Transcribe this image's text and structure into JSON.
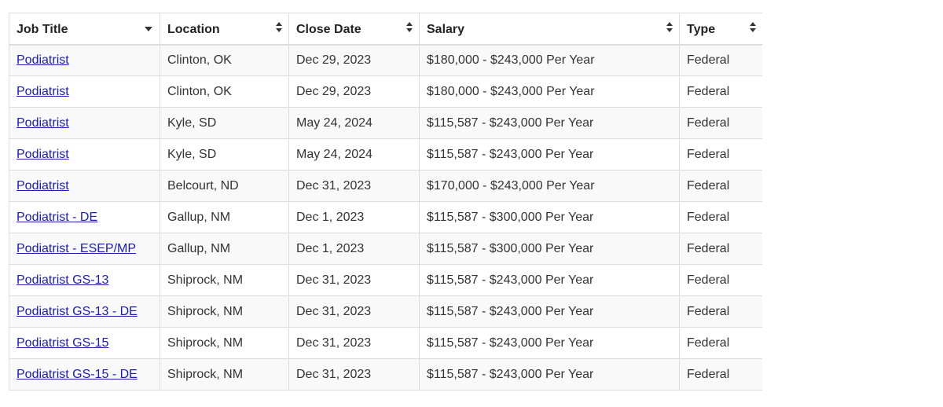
{
  "table": {
    "columns": [
      {
        "label": "Job Title",
        "sort_icon": "caret-down-icon"
      },
      {
        "label": "Location",
        "sort_icon": "sort-both-icon"
      },
      {
        "label": "Close Date",
        "sort_icon": "sort-both-icon"
      },
      {
        "label": "Salary",
        "sort_icon": "sort-both-icon"
      },
      {
        "label": "Type",
        "sort_icon": "sort-both-icon"
      }
    ],
    "rows": [
      {
        "title": "Podiatrist",
        "location": "Clinton, OK",
        "close_date": "Dec 29, 2023",
        "salary": "$180,000 - $243,000 Per Year",
        "type": "Federal"
      },
      {
        "title": "Podiatrist",
        "location": "Clinton, OK",
        "close_date": "Dec 29, 2023",
        "salary": "$180,000 - $243,000 Per Year",
        "type": "Federal"
      },
      {
        "title": "Podiatrist",
        "location": "Kyle, SD",
        "close_date": "May 24, 2024",
        "salary": "$115,587 - $243,000 Per Year",
        "type": "Federal"
      },
      {
        "title": "Podiatrist",
        "location": "Kyle, SD",
        "close_date": "May 24, 2024",
        "salary": "$115,587 - $243,000 Per Year",
        "type": "Federal"
      },
      {
        "title": "Podiatrist",
        "location": "Belcourt, ND",
        "close_date": "Dec 31, 2023",
        "salary": "$170,000 - $243,000 Per Year",
        "type": "Federal"
      },
      {
        "title": "Podiatrist - DE",
        "location": "Gallup, NM",
        "close_date": "Dec 1, 2023",
        "salary": "$115,587 - $300,000 Per Year",
        "type": "Federal"
      },
      {
        "title": "Podiatrist - ESEP/MP",
        "location": "Gallup, NM",
        "close_date": "Dec 1, 2023",
        "salary": "$115,587 - $300,000 Per Year",
        "type": "Federal"
      },
      {
        "title": "Podiatrist GS-13",
        "location": "Shiprock, NM",
        "close_date": "Dec 31, 2023",
        "salary": "$115,587 - $243,000 Per Year",
        "type": "Federal"
      },
      {
        "title": "Podiatrist GS-13 - DE",
        "location": "Shiprock, NM",
        "close_date": "Dec 31, 2023",
        "salary": "$115,587 - $243,000 Per Year",
        "type": "Federal"
      },
      {
        "title": "Podiatrist GS-15",
        "location": "Shiprock, NM",
        "close_date": "Dec 31, 2023",
        "salary": "$115,587 - $243,000 Per Year",
        "type": "Federal"
      },
      {
        "title": "Podiatrist GS-15 - DE",
        "location": "Shiprock, NM",
        "close_date": "Dec 31, 2023",
        "salary": "$115,587 - $243,000 Per Year",
        "type": "Federal"
      }
    ]
  },
  "colors": {
    "link": "#1b1bbd",
    "text": "#333333",
    "border": "#dddddd",
    "stripe": "#f9f9f9"
  }
}
